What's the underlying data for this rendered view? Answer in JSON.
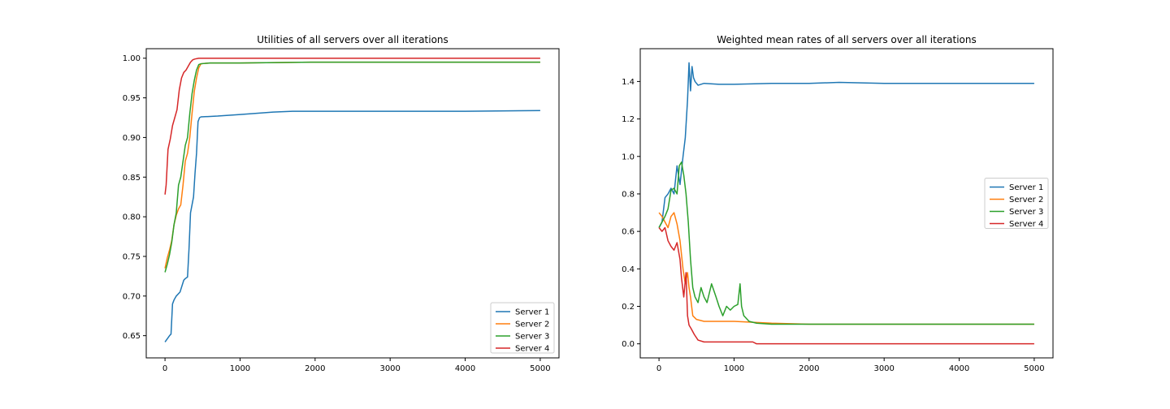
{
  "chart_data": [
    {
      "type": "line",
      "title": "Utilities of all servers over all iterations",
      "xlabel": "",
      "ylabel": "",
      "xlim": [
        -250,
        5250
      ],
      "ylim": [
        0.622,
        1.012
      ],
      "xticks": [
        0,
        1000,
        2000,
        3000,
        4000,
        5000
      ],
      "yticks": [
        0.65,
        0.7,
        0.75,
        0.8,
        0.85,
        0.9,
        0.95,
        1.0
      ],
      "ytick_labels": [
        "0.65",
        "0.70",
        "0.75",
        "0.80",
        "0.85",
        "0.90",
        "0.95",
        "1.00"
      ],
      "grid": false,
      "legend": "lower-right",
      "series": [
        {
          "name": "Server 1",
          "color": "#1f77b4",
          "x": [
            0,
            30,
            60,
            80,
            100,
            120,
            150,
            200,
            250,
            270,
            300,
            320,
            340,
            360,
            380,
            400,
            420,
            440,
            460,
            480,
            700,
            1000,
            1440,
            1700,
            2000,
            3000,
            4000,
            5000
          ],
          "y": [
            0.642,
            0.646,
            0.65,
            0.652,
            0.69,
            0.695,
            0.7,
            0.705,
            0.72,
            0.722,
            0.724,
            0.76,
            0.805,
            0.815,
            0.825,
            0.855,
            0.88,
            0.92,
            0.925,
            0.926,
            0.927,
            0.929,
            0.932,
            0.933,
            0.933,
            0.933,
            0.933,
            0.934
          ]
        },
        {
          "name": "Server 2",
          "color": "#ff7f0e",
          "x": [
            0,
            30,
            60,
            90,
            120,
            150,
            180,
            210,
            240,
            270,
            300,
            330,
            360,
            390,
            420,
            450,
            480,
            600,
            1000,
            2000,
            3000,
            4000,
            5000
          ],
          "y": [
            0.735,
            0.748,
            0.758,
            0.77,
            0.79,
            0.802,
            0.81,
            0.815,
            0.84,
            0.87,
            0.88,
            0.9,
            0.93,
            0.958,
            0.975,
            0.988,
            0.993,
            0.994,
            0.994,
            0.995,
            0.995,
            0.995,
            0.995
          ]
        },
        {
          "name": "Server 3",
          "color": "#2ca02c",
          "x": [
            0,
            30,
            60,
            90,
            120,
            150,
            180,
            210,
            240,
            270,
            300,
            330,
            360,
            390,
            420,
            450,
            480,
            600,
            1000,
            2000,
            3000,
            4000,
            5000
          ],
          "y": [
            0.73,
            0.74,
            0.752,
            0.768,
            0.79,
            0.805,
            0.84,
            0.85,
            0.87,
            0.89,
            0.9,
            0.93,
            0.955,
            0.972,
            0.985,
            0.992,
            0.993,
            0.994,
            0.994,
            0.995,
            0.995,
            0.995,
            0.995
          ]
        },
        {
          "name": "Server 4",
          "color": "#d62728",
          "x": [
            0,
            15,
            40,
            70,
            100,
            130,
            160,
            190,
            220,
            250,
            280,
            310,
            340,
            370,
            400,
            450,
            600,
            1000,
            2000,
            3000,
            4000,
            5000
          ],
          "y": [
            0.828,
            0.84,
            0.885,
            0.898,
            0.915,
            0.925,
            0.935,
            0.96,
            0.975,
            0.982,
            0.985,
            0.99,
            0.995,
            0.998,
            0.999,
            1.0,
            1.0,
            1.0,
            1.0,
            1.0,
            1.0,
            1.0
          ]
        }
      ]
    },
    {
      "type": "line",
      "title": "Weighted mean rates of all servers over all iterations",
      "xlabel": "",
      "ylabel": "",
      "xlim": [
        -250,
        5250
      ],
      "ylim": [
        -0.075,
        1.575
      ],
      "xticks": [
        0,
        1000,
        2000,
        3000,
        4000,
        5000
      ],
      "yticks": [
        0.0,
        0.2,
        0.4,
        0.6,
        0.8,
        1.0,
        1.2,
        1.4
      ],
      "ytick_labels": [
        "0.0",
        "0.2",
        "0.4",
        "0.6",
        "0.8",
        "1.0",
        "1.2",
        "1.4"
      ],
      "grid": false,
      "legend": "center-right",
      "series": [
        {
          "name": "Server 1",
          "color": "#1f77b4",
          "x": [
            0,
            40,
            80,
            120,
            160,
            200,
            240,
            280,
            320,
            350,
            380,
            400,
            420,
            440,
            460,
            480,
            500,
            520,
            600,
            800,
            1000,
            1500,
            2000,
            2400,
            3000,
            3500,
            4000,
            4500,
            5000
          ],
          "y": [
            0.62,
            0.65,
            0.78,
            0.8,
            0.83,
            0.8,
            0.95,
            0.85,
            1.0,
            1.1,
            1.3,
            1.5,
            1.35,
            1.48,
            1.42,
            1.4,
            1.39,
            1.38,
            1.39,
            1.385,
            1.385,
            1.39,
            1.39,
            1.395,
            1.39,
            1.39,
            1.39,
            1.39,
            1.39
          ]
        },
        {
          "name": "Server 2",
          "color": "#ff7f0e",
          "x": [
            0,
            40,
            80,
            120,
            160,
            200,
            240,
            280,
            320,
            350,
            380,
            400,
            420,
            450,
            500,
            600,
            800,
            1000,
            1500,
            2000,
            3000,
            4000,
            5000
          ],
          "y": [
            0.7,
            0.68,
            0.65,
            0.62,
            0.68,
            0.7,
            0.64,
            0.55,
            0.4,
            0.32,
            0.38,
            0.3,
            0.25,
            0.15,
            0.13,
            0.12,
            0.12,
            0.12,
            0.11,
            0.105,
            0.105,
            0.105,
            0.105
          ]
        },
        {
          "name": "Server 3",
          "color": "#2ca02c",
          "x": [
            0,
            40,
            80,
            120,
            160,
            200,
            240,
            270,
            300,
            330,
            360,
            390,
            420,
            450,
            480,
            520,
            560,
            600,
            640,
            700,
            760,
            800,
            850,
            900,
            950,
            1000,
            1050,
            1080,
            1100,
            1130,
            1200,
            1300,
            1500,
            2000,
            3000,
            4000,
            5000
          ],
          "y": [
            0.62,
            0.65,
            0.68,
            0.72,
            0.82,
            0.83,
            0.8,
            0.95,
            0.97,
            0.9,
            0.8,
            0.65,
            0.45,
            0.3,
            0.25,
            0.22,
            0.3,
            0.25,
            0.22,
            0.32,
            0.25,
            0.2,
            0.15,
            0.2,
            0.18,
            0.2,
            0.21,
            0.32,
            0.2,
            0.15,
            0.12,
            0.11,
            0.105,
            0.105,
            0.105,
            0.105,
            0.105
          ]
        },
        {
          "name": "Server 4",
          "color": "#d62728",
          "x": [
            0,
            40,
            80,
            120,
            160,
            200,
            240,
            280,
            300,
            330,
            360,
            380,
            400,
            430,
            470,
            520,
            600,
            800,
            1000,
            1250,
            1300,
            2000,
            3000,
            4000,
            5000
          ],
          "y": [
            0.62,
            0.6,
            0.62,
            0.55,
            0.52,
            0.5,
            0.54,
            0.45,
            0.35,
            0.25,
            0.38,
            0.15,
            0.1,
            0.08,
            0.05,
            0.02,
            0.01,
            0.01,
            0.01,
            0.01,
            0.0,
            0.0,
            0.0,
            0.0,
            0.0
          ]
        }
      ]
    }
  ]
}
